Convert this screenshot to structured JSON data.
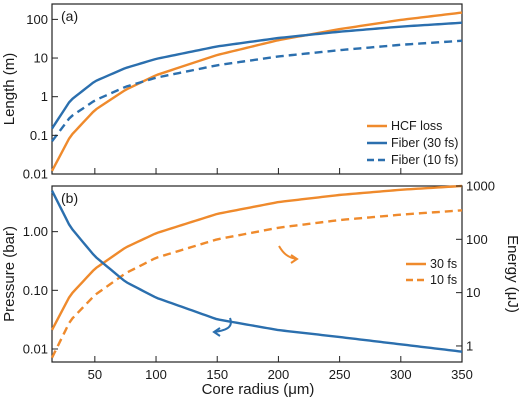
{
  "colors": {
    "orange": "#ef8a2c",
    "blue": "#2b6fae"
  },
  "chart_data": [
    {
      "panel": "(a)",
      "type": "line",
      "title": "",
      "xlabel": "",
      "ylabel": "Length (m)",
      "xlim": [
        15,
        350
      ],
      "ylim": [
        0.01,
        250
      ],
      "yscale": "log",
      "x_ticks": [
        50,
        100,
        150,
        200,
        250,
        300,
        350
      ],
      "y_ticks": [
        0.01,
        0.1,
        1,
        10,
        100
      ],
      "y_tick_labels": [
        "0.01",
        "0.1",
        "1",
        "10",
        "100"
      ],
      "grid": false,
      "legend_position": "bottom-right",
      "series": [
        {
          "name": "HCF loss",
          "color": "orange",
          "style": "solid",
          "x": [
            15,
            30,
            50,
            75,
            100,
            150,
            200,
            250,
            300,
            350
          ],
          "y": [
            0.012,
            0.095,
            0.45,
            1.5,
            3.6,
            12,
            29,
            56,
            97,
            150
          ]
        },
        {
          "name": "Fiber (30 fs)",
          "color": "blue",
          "style": "solid",
          "x": [
            15,
            30,
            50,
            75,
            100,
            150,
            200,
            250,
            300,
            350
          ],
          "y": [
            0.15,
            0.8,
            2.5,
            5.5,
            9.5,
            20,
            33,
            48,
            65,
            82
          ]
        },
        {
          "name": "Fiber (10 fs)",
          "color": "blue",
          "style": "dashed",
          "x": [
            15,
            30,
            50,
            75,
            100,
            150,
            200,
            250,
            300,
            350
          ],
          "y": [
            0.07,
            0.3,
            0.8,
            1.8,
            3.1,
            6.5,
            11,
            16,
            22,
            28
          ]
        }
      ]
    },
    {
      "panel": "(b)",
      "type": "line",
      "title": "",
      "xlabel": "Core radius (μm)",
      "ylabel": "Pressure (bar)",
      "y2label": "Energy (μJ)",
      "xlim": [
        15,
        350
      ],
      "ylim": [
        0.006,
        6
      ],
      "yscale": "log",
      "y2lim": [
        0.5,
        1000
      ],
      "y2scale": "log",
      "x_ticks": [
        50,
        100,
        150,
        200,
        250,
        300,
        350
      ],
      "x_tick_labels": [
        "50",
        "100",
        "150",
        "200",
        "250",
        "300",
        "350"
      ],
      "y_ticks": [
        0.01,
        0.1,
        1
      ],
      "y_tick_labels": [
        "0.01",
        "0.10",
        "1.00"
      ],
      "y2_ticks": [
        1,
        10,
        100,
        1000
      ],
      "y2_tick_labels": [
        "1",
        "10",
        "100",
        "1000"
      ],
      "grid": false,
      "legend_position": "right",
      "series": [
        {
          "name": "30 fs",
          "color": "orange",
          "style": "solid",
          "axis": "right",
          "x": [
            15,
            30,
            50,
            75,
            100,
            150,
            200,
            250,
            300,
            350
          ],
          "y": [
            2,
            9,
            28,
            70,
            130,
            300,
            500,
            680,
            850,
            1000
          ]
        },
        {
          "name": "10 fs",
          "color": "orange",
          "style": "dashed",
          "axis": "right",
          "x": [
            15,
            30,
            50,
            75,
            100,
            150,
            200,
            250,
            300,
            350
          ],
          "y": [
            0.6,
            3,
            9,
            23,
            45,
            100,
            165,
            230,
            290,
            350
          ]
        },
        {
          "color": "blue",
          "style": "solid",
          "axis": "left",
          "x": [
            15,
            30,
            50,
            75,
            100,
            150,
            200,
            250,
            300,
            350
          ],
          "y": [
            5,
            1.2,
            0.38,
            0.14,
            0.075,
            0.032,
            0.021,
            0.016,
            0.012,
            0.009
          ]
        }
      ]
    }
  ]
}
